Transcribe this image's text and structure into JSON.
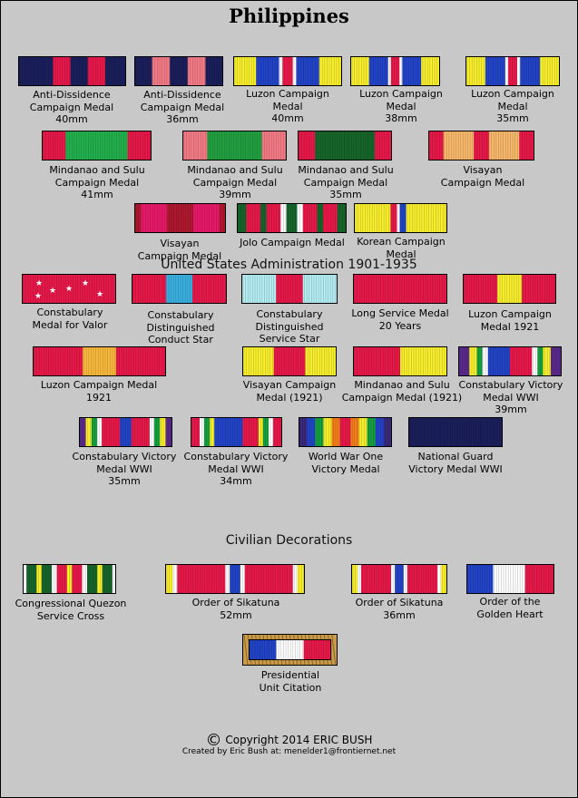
{
  "title": "Philippines",
  "sections": {
    "us_admin": "United States Administration 1901-1935",
    "civilian": "Civilian Decorations"
  },
  "medals": [
    {
      "label": "Anti-Dissidence\nCampaign Medal\n40mm",
      "colors": [
        "#1b1f5c",
        "#e8194a",
        "#1b1f5c",
        "#e8194a",
        "#1b1f5c"
      ],
      "widths": [
        2,
        1,
        1,
        1,
        1.2
      ]
    },
    {
      "label": "Anti-Dissidence\nCampaign Medal\n36mm",
      "colors": [
        "#1b1f5c",
        "#f47b86",
        "#1b1f5c",
        "#f47b86",
        "#1b1f5c"
      ],
      "widths": [
        1,
        1,
        1,
        1,
        1
      ]
    },
    {
      "label": "Luzon Campaign\nMedal\n40mm",
      "colors": [
        "#f9ef2d",
        "#2244c8",
        "#ffffff",
        "#e8194a",
        "#ffffff",
        "#2244c8",
        "#f9ef2d"
      ],
      "widths": [
        2,
        2,
        0.3,
        0.9,
        0.3,
        2,
        2
      ]
    },
    {
      "label": "Luzon Campaign\nMedal\n38mm",
      "colors": [
        "#f9ef2d",
        "#2244c8",
        "#ffffff",
        "#e8194a",
        "#ffffff",
        "#2244c8",
        "#f9ef2d"
      ],
      "widths": [
        2,
        2,
        0.3,
        0.9,
        0.3,
        2,
        2
      ]
    },
    {
      "label": "Luzon Campaign\nMedal\n35mm",
      "colors": [
        "#f9ef2d",
        "#2244c8",
        "#ffffff",
        "#e8194a",
        "#ffffff",
        "#2244c8",
        "#f9ef2d"
      ],
      "widths": [
        2,
        2,
        0.3,
        0.9,
        0.3,
        2,
        2
      ]
    },
    {
      "label": "Mindanao and Sulu\nCampaign Medal\n41mm",
      "colors": [
        "#e8194a",
        "#22b14c",
        "#e8194a"
      ],
      "widths": [
        1,
        2.6,
        1
      ]
    },
    {
      "label": "Mindanao and Sulu\nCampaign Medal\n39mm",
      "colors": [
        "#f47b86",
        "#22a040",
        "#f47b86"
      ],
      "widths": [
        1,
        2.2,
        1
      ]
    },
    {
      "label": "Mindanao and Sulu\nCampaign Medal\n35mm",
      "colors": [
        "#e8194a",
        "#16662c",
        "#e8194a"
      ],
      "widths": [
        0.7,
        2.4,
        0.7
      ]
    },
    {
      "label": "Visayan\nCampaign Medal",
      "colors": [
        "#e8194a",
        "#f9b96b",
        "#e8194a",
        "#f9b96b",
        "#e8194a"
      ],
      "widths": [
        1,
        2,
        1,
        2,
        1
      ]
    },
    {
      "label": "Visayan\nCampaign Medal",
      "colors": [
        "#b01830",
        "#e8196a",
        "#b01830",
        "#e8196a",
        "#b01830"
      ],
      "widths": [
        0.3,
        1.2,
        1.2,
        1.2,
        0.3
      ]
    },
    {
      "label": "Jolo Campaign Medal",
      "colors": [
        "#16662c",
        "#e8194a",
        "#16662c",
        "#e8194a",
        "#ffffff",
        "#16662c",
        "#ffffff",
        "#e8194a",
        "#16662c",
        "#e8194a",
        "#16662c"
      ],
      "widths": [
        0.8,
        1.2,
        0.5,
        1.2,
        0.5,
        0.9,
        0.5,
        1.2,
        0.5,
        1.2,
        0.8
      ]
    },
    {
      "label": "Korean Campaign\nMedal",
      "colors": [
        "#f9ef2d",
        "#e8194a",
        "#ffffff",
        "#2244c8",
        "#f9ef2d"
      ],
      "widths": [
        4,
        0.7,
        0.3,
        0.7,
        4.5
      ]
    },
    {
      "label": "Constabulary\nMedal for Valor",
      "colors": [
        "#e8194a"
      ],
      "widths": [
        1
      ]
    },
    {
      "label": "Constabulary\nDistinguished\nConduct Star",
      "colors": [
        "#e8194a",
        "#3ab0e0",
        "#e8194a"
      ],
      "widths": [
        1.3,
        1,
        1.3
      ]
    },
    {
      "label": "Constabulary\nDistinguished\nService Star",
      "colors": [
        "#b4eef4",
        "#e8194a",
        "#b4eef4"
      ],
      "widths": [
        1.3,
        1,
        1.3
      ]
    },
    {
      "label": "Long Service Medal\n20 Years",
      "colors": [
        "#e8194a"
      ],
      "widths": [
        1
      ]
    },
    {
      "label": "Luzon Campaign\nMedal 1921",
      "colors": [
        "#e8194a",
        "#f9ef2d",
        "#e8194a"
      ],
      "widths": [
        1.4,
        1,
        1.4
      ]
    },
    {
      "label": "Luzon Campaign Medal\n1921",
      "colors": [
        "#e8194a",
        "#f9b93b",
        "#e8194a"
      ],
      "widths": [
        1.5,
        1,
        1.5
      ]
    },
    {
      "label": "Visayan Campaign\nMedal (1921)",
      "colors": [
        "#f9ef2d",
        "#e8194a",
        "#f9ef2d"
      ],
      "widths": [
        1,
        1,
        1
      ]
    },
    {
      "label": "Mindanao and Sulu\nCampaign Medal (1921)",
      "colors": [
        "#e8194a",
        "#f9ef2d"
      ],
      "widths": [
        1,
        1
      ]
    },
    {
      "label": "Constabulary Victory\nMedal WWI\n39mm",
      "colors": [
        "#5a2a8c",
        "#f9ef2d",
        "#16a040",
        "#ffffff",
        "#2244c8",
        "#e8194a",
        "#ffffff",
        "#16a040",
        "#f9ef2d",
        "#5a2a8c"
      ],
      "widths": [
        1,
        0.7,
        0.5,
        0.5,
        2,
        2,
        0.5,
        0.5,
        0.7,
        1
      ]
    },
    {
      "label": "Constabulary Victory\nMedal WWI\n35mm",
      "colors": [
        "#5a2a8c",
        "#f9ef2d",
        "#16a040",
        "#ffffff",
        "#e8194a",
        "#2244c8",
        "#e8194a",
        "#ffffff",
        "#16a040",
        "#f9ef2d",
        "#5a2a8c"
      ],
      "widths": [
        0.6,
        0.5,
        0.5,
        0.4,
        1.6,
        1,
        1.6,
        0.4,
        0.5,
        0.5,
        0.6
      ]
    },
    {
      "label": "Constabulary Victory\nMedal WWI\n34mm",
      "colors": [
        "#e8194a",
        "#ffffff",
        "#16a040",
        "#f9ef2d",
        "#2244c8",
        "#e8194a",
        "#f9ef2d",
        "#16a040",
        "#ffffff",
        "#e8194a"
      ],
      "widths": [
        0.8,
        0.4,
        0.5,
        0.4,
        2.5,
        1.4,
        0.4,
        0.5,
        0.4,
        0.8
      ]
    },
    {
      "label": "World War One\nVictory Medal",
      "colors": [
        "#3a2a7c",
        "#2244c8",
        "#16a040",
        "#f9ef2d",
        "#f4801b",
        "#e8194a",
        "#f4801b",
        "#f9ef2d",
        "#16a040",
        "#2244c8",
        "#3a2a7c"
      ],
      "widths": [
        1,
        1,
        1,
        1,
        1,
        1.3,
        1,
        1,
        1,
        1,
        1
      ]
    },
    {
      "label": "National Guard\nVictory Medal WWI",
      "colors": [
        "#1b1f5c"
      ],
      "widths": [
        1
      ]
    },
    {
      "label": "Congressional Quezon\nService Cross",
      "colors": [
        "#ffffff",
        "#16662c",
        "#f9ef2d",
        "#16662c",
        "#ffffff",
        "#e8194a",
        "#f9ef2d",
        "#e8194a",
        "#ffffff",
        "#16662c",
        "#f9ef2d",
        "#16662c",
        "#ffffff"
      ],
      "widths": [
        0.3,
        0.8,
        0.4,
        0.8,
        0.4,
        0.8,
        0.4,
        0.8,
        0.4,
        0.8,
        0.4,
        0.8,
        0.3
      ]
    },
    {
      "label": "Order of Sikatuna\n52mm",
      "colors": [
        "#f9ef2d",
        "#ffffff",
        "#e8194a",
        "#ffffff",
        "#2244c8",
        "#ffffff",
        "#e8194a",
        "#ffffff",
        "#f9ef2d"
      ],
      "widths": [
        0.5,
        0.3,
        3.2,
        0.3,
        0.7,
        0.3,
        3.2,
        0.3,
        0.5
      ]
    },
    {
      "label": "Order of Sikatuna\n36mm",
      "colors": [
        "#f9ef2d",
        "#ffffff",
        "#e8194a",
        "#ffffff",
        "#2244c8",
        "#ffffff",
        "#e8194a",
        "#ffffff",
        "#f9ef2d"
      ],
      "widths": [
        0.5,
        0.3,
        2.4,
        0.3,
        0.7,
        0.3,
        2.4,
        0.3,
        0.5
      ]
    },
    {
      "label": "Order of the\nGolden Heart",
      "colors": [
        "#2244c8",
        "#ffffff",
        "#e8194a"
      ],
      "widths": [
        1,
        1.2,
        1.1
      ]
    },
    {
      "label": "Presidential\nUnit Citation",
      "colors": [
        "#2244c8",
        "#ffffff",
        "#e8194a"
      ],
      "widths": [
        1,
        1,
        1
      ]
    }
  ],
  "copyright": "Copyright 2014  ERIC BUSH",
  "copyright_symbol": "©",
  "created_by": "Created by Eric Bush at:  menelder1@frontiernet.net"
}
